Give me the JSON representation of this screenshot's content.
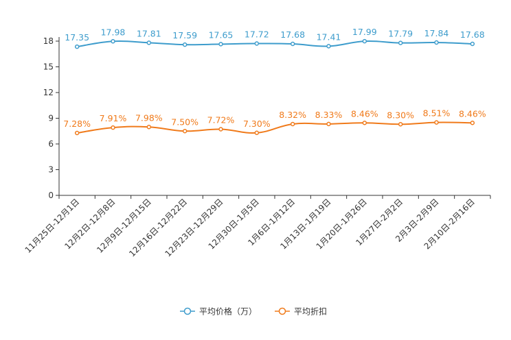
{
  "chart_data": {
    "type": "line",
    "categories": [
      "11月25日-12月1日",
      "12月2日-12月8日",
      "12月9日-12月15日",
      "12月16日-12月22日",
      "12月23日-12月29日",
      "12月30日-1月5日",
      "1月6日-1月12日",
      "1月13日-1月19日",
      "1月20日-1月26日",
      "1月27日-2月2日",
      "2月3日-2月9日",
      "2月10日-2月16日"
    ],
    "ylim": [
      0,
      18
    ],
    "yticks": [
      0,
      3,
      6,
      9,
      12,
      15,
      18
    ],
    "series": [
      {
        "name": "平均价格（万）",
        "color": "#3d9ccc",
        "values": [
          17.35,
          17.98,
          17.81,
          17.59,
          17.65,
          17.72,
          17.68,
          17.41,
          17.99,
          17.79,
          17.84,
          17.68
        ],
        "labels": [
          "17.35",
          "17.98",
          "17.81",
          "17.59",
          "17.65",
          "17.72",
          "17.68",
          "17.41",
          "17.99",
          "17.79",
          "17.84",
          "17.68"
        ]
      },
      {
        "name": "平均折扣",
        "color": "#f07a1a",
        "values": [
          7.28,
          7.91,
          7.98,
          7.5,
          7.72,
          7.3,
          8.32,
          8.33,
          8.46,
          8.3,
          8.51,
          8.46
        ],
        "labels": [
          "7.28%",
          "7.91%",
          "7.98%",
          "7.50%",
          "7.72%",
          "7.30%",
          "8.32%",
          "8.33%",
          "8.46%",
          "8.30%",
          "8.51%",
          "8.46%"
        ]
      }
    ],
    "legend_position": "bottom-center"
  }
}
